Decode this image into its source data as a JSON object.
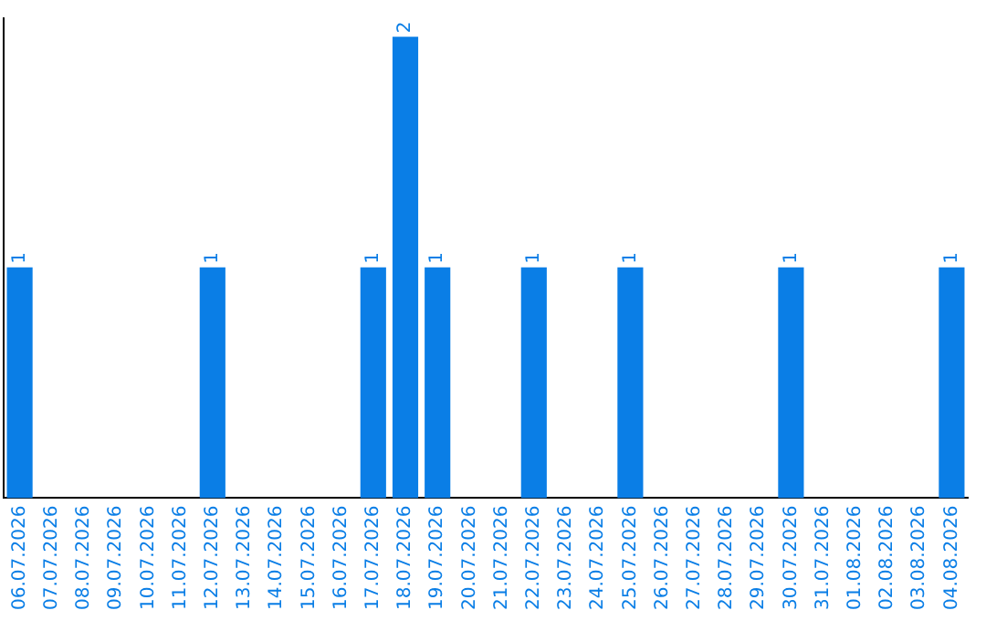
{
  "chart_data": {
    "type": "bar",
    "categories": [
      "06.07.2026",
      "07.07.2026",
      "08.07.2026",
      "09.07.2026",
      "10.07.2026",
      "11.07.2026",
      "12.07.2026",
      "13.07.2026",
      "14.07.2026",
      "15.07.2026",
      "16.07.2026",
      "17.07.2026",
      "18.07.2026",
      "19.07.2026",
      "20.07.2026",
      "21.07.2026",
      "22.07.2026",
      "23.07.2026",
      "24.07.2026",
      "25.07.2026",
      "26.07.2026",
      "27.07.2026",
      "28.07.2026",
      "29.07.2026",
      "30.07.2026",
      "31.07.2026",
      "01.08.2026",
      "02.08.2026",
      "03.08.2026",
      "04.08.2026"
    ],
    "values": [
      1,
      0,
      0,
      0,
      0,
      0,
      1,
      0,
      0,
      0,
      0,
      1,
      2,
      1,
      0,
      0,
      1,
      0,
      0,
      1,
      0,
      0,
      0,
      0,
      1,
      0,
      0,
      0,
      0,
      1
    ],
    "value_labels": [
      "1",
      null,
      null,
      null,
      null,
      null,
      "1",
      null,
      null,
      null,
      null,
      "1",
      "2",
      "1",
      null,
      null,
      "1",
      null,
      null,
      "1",
      null,
      null,
      null,
      null,
      "1",
      null,
      null,
      null,
      null,
      "1"
    ],
    "color": "#0a7ee6",
    "ylim": [
      0,
      2.08
    ],
    "grid": false,
    "legend": false
  }
}
